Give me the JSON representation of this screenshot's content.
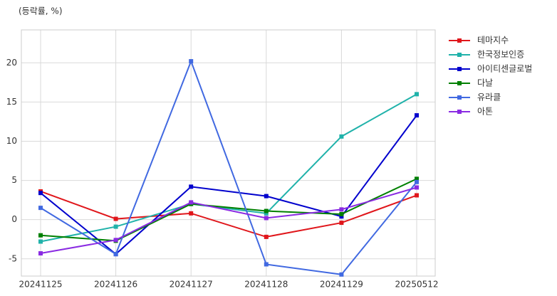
{
  "chart_data": {
    "type": "line",
    "subtitle": "(등락률, %)",
    "categories": [
      "20241125",
      "20241126",
      "20241127",
      "20241128",
      "20241129",
      "20250512"
    ],
    "series": [
      {
        "name": "테마지수",
        "color": "#e0161b",
        "values": [
          3.6,
          0.1,
          0.8,
          -2.2,
          -0.4,
          3.1
        ]
      },
      {
        "name": "한국정보인증",
        "color": "#20b2aa",
        "values": [
          -2.8,
          -0.9,
          2.0,
          0.8,
          10.6,
          16.0
        ]
      },
      {
        "name": "아이티센글로벌",
        "color": "#0000cd",
        "values": [
          3.4,
          -4.4,
          4.2,
          3.0,
          0.4,
          13.3
        ]
      },
      {
        "name": "다날",
        "color": "#008000",
        "values": [
          -2.0,
          -2.7,
          2.0,
          1.1,
          0.7,
          5.2
        ]
      },
      {
        "name": "유라클",
        "color": "#4169e1",
        "values": [
          1.5,
          -4.4,
          20.2,
          -5.7,
          -7.0,
          4.8
        ]
      },
      {
        "name": "아톤",
        "color": "#8a2be2",
        "values": [
          -4.3,
          -2.6,
          2.2,
          0.2,
          1.3,
          4.1
        ]
      }
    ],
    "ylim": [
      -7.2,
      24.2
    ],
    "yticks": [
      -5,
      0,
      5,
      10,
      15,
      20
    ],
    "grid": true,
    "legend": "right"
  }
}
